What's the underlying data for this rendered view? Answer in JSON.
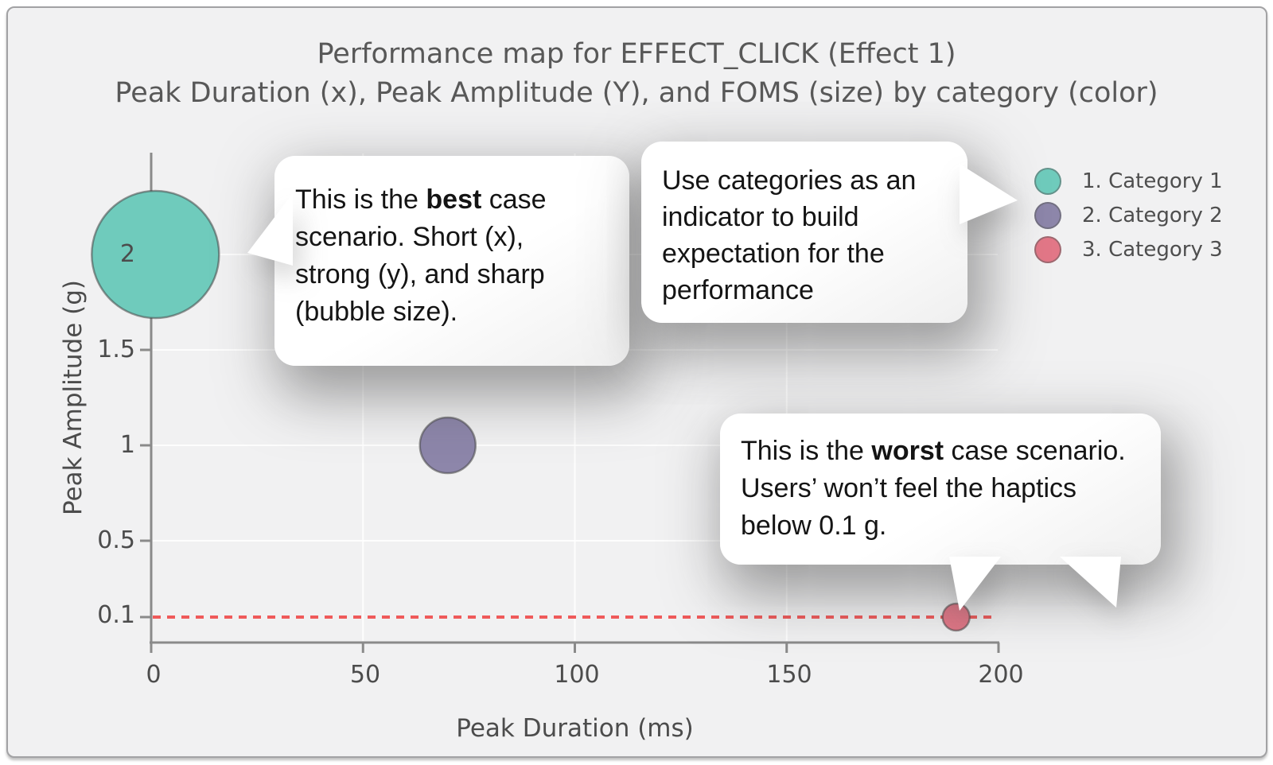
{
  "chart_data": {
    "type": "scatter",
    "title": "Performance map for EFFECT_CLICK (Effect 1)",
    "subtitle": "Peak Duration (x), Peak Amplitude (Y), and FOMS (size) by category (color)",
    "xlabel": "Peak Duration (ms)",
    "ylabel": "Peak Amplitude (g)",
    "xlim": [
      0,
      200
    ],
    "x_ticks": [
      0,
      50,
      100,
      150,
      200
    ],
    "x_tick_labels": [
      "0",
      "50",
      "100",
      "150",
      "200"
    ],
    "y_ticks": [
      2,
      1.5,
      1,
      0.5,
      0.1
    ],
    "y_tick_labels": [
      "2",
      "1.5",
      "1",
      "0.5",
      "0.1"
    ],
    "grid": true,
    "legend_position": "top-right",
    "series": [
      {
        "name": "1. Category 1",
        "color": "#6fcbbc",
        "points": [
          {
            "x": 1,
            "y": 2.0,
            "radius_px": 80,
            "note": "best case"
          }
        ]
      },
      {
        "name": "2. Category 2",
        "color": "#8d86aa",
        "points": [
          {
            "x": 70,
            "y": 1.0,
            "radius_px": 35
          }
        ]
      },
      {
        "name": "3. Category 3",
        "color": "#e27787",
        "points": [
          {
            "x": 190,
            "y": 0.1,
            "radius_px": 17,
            "note": "worst case"
          }
        ]
      }
    ],
    "threshold": {
      "y": 0.1,
      "color": "#ef5a5a",
      "style": "dashed"
    }
  },
  "callouts": {
    "best": {
      "pre": "This is the ",
      "bold": "best",
      "post": " case scenario. Short (x), strong (y), and sharp (bubble size)."
    },
    "categories": {
      "text": "Use categories as an indicator to build expectation for the performance"
    },
    "worst": {
      "pre": "This is the ",
      "bold": "worst",
      "post": " case scenario. Users’ won’t feel the haptics below 0.1 g."
    }
  }
}
